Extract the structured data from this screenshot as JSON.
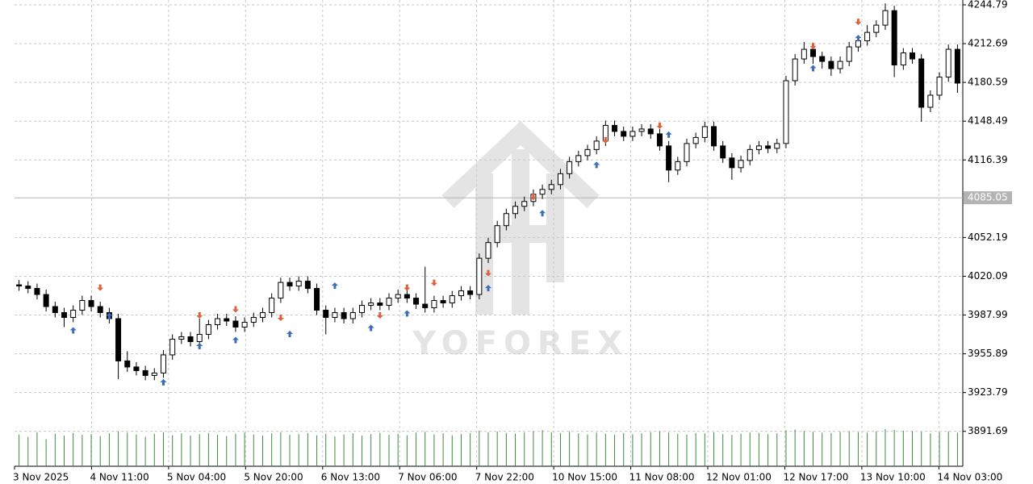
{
  "chart_data": {
    "type": "candlestick",
    "watermark": "YOFOREX",
    "ylim": [
      3862.8,
      4248.8
    ],
    "yticks": [
      4244.79,
      4212.69,
      4180.59,
      4148.49,
      4116.39,
      4052.19,
      4020.09,
      3987.99,
      3955.89,
      3923.79,
      3891.69
    ],
    "current_price": 4085.05,
    "grid": true,
    "x_labels": [
      "3 Nov 2025",
      "4 Nov 11:00",
      "5 Nov 04:00",
      "5 Nov 20:00",
      "6 Nov 13:00",
      "7 Nov 06:00",
      "7 Nov 22:00",
      "10 Nov 15:00",
      "11 Nov 08:00",
      "12 Nov 01:00",
      "12 Nov 17:00",
      "13 Nov 10:00",
      "14 Nov 03:00"
    ],
    "up_color": "#ffffff",
    "down_color": "#000000",
    "ohlc": [
      [
        4013,
        4017,
        4008,
        4012
      ],
      [
        4012,
        4016,
        4006,
        4010
      ],
      [
        4010,
        4014,
        4001,
        4005
      ],
      [
        4005,
        4009,
        3991,
        3995
      ],
      [
        3995,
        3999,
        3986,
        3990
      ],
      [
        3990,
        3994,
        3978,
        3986
      ],
      [
        3986,
        3996,
        3982,
        3992
      ],
      [
        3992,
        4004,
        3988,
        4000
      ],
      [
        4000,
        4004,
        3991,
        3995
      ],
      [
        3995,
        3999,
        3986,
        3990
      ],
      [
        3990,
        3994,
        3981,
        3985
      ],
      [
        3985,
        3989,
        3935,
        3950
      ],
      [
        3950,
        3958,
        3941,
        3945
      ],
      [
        3945,
        3949,
        3938,
        3942
      ],
      [
        3942,
        3946,
        3934,
        3938
      ],
      [
        3938,
        3944,
        3934,
        3940
      ],
      [
        3940,
        3959,
        3936,
        3955
      ],
      [
        3955,
        3972,
        3951,
        3968
      ],
      [
        3968,
        3974,
        3964,
        3970
      ],
      [
        3970,
        3974,
        3962,
        3966
      ],
      [
        3966,
        3985,
        3962,
        3972
      ],
      [
        3972,
        3984,
        3968,
        3980
      ],
      [
        3980,
        3989,
        3976,
        3985
      ],
      [
        3985,
        3989,
        3979,
        3983
      ],
      [
        3983,
        3987,
        3974,
        3978
      ],
      [
        3978,
        3986,
        3974,
        3982
      ],
      [
        3982,
        3990,
        3978,
        3986
      ],
      [
        3986,
        3994,
        3982,
        3990
      ],
      [
        3990,
        4006,
        3986,
        4002
      ],
      [
        4002,
        4019,
        3998,
        4015
      ],
      [
        4015,
        4019,
        4008,
        4012
      ],
      [
        4012,
        4020,
        4008,
        4016
      ],
      [
        4016,
        4020,
        4006,
        4010
      ],
      [
        4010,
        4014,
        3988,
        3992
      ],
      [
        3992,
        3996,
        3972,
        3986
      ],
      [
        3986,
        3994,
        3982,
        3990
      ],
      [
        3990,
        3994,
        3981,
        3985
      ],
      [
        3985,
        3994,
        3981,
        3990
      ],
      [
        3990,
        4000,
        3986,
        3996
      ],
      [
        3996,
        4002,
        3992,
        3998
      ],
      [
        3998,
        4002,
        3992,
        3996
      ],
      [
        3996,
        4006,
        3992,
        4002
      ],
      [
        4002,
        4009,
        3998,
        4005
      ],
      [
        4005,
        4009,
        3998,
        4002
      ],
      [
        4002,
        4006,
        3993,
        3997
      ],
      [
        3997,
        4028,
        3990,
        3994
      ],
      [
        3994,
        4004,
        3990,
        4000
      ],
      [
        4000,
        4004,
        3994,
        3998
      ],
      [
        3998,
        4008,
        3994,
        4004
      ],
      [
        4004,
        4012,
        4000,
        4008
      ],
      [
        4008,
        4012,
        4001,
        4005
      ],
      [
        4005,
        4039,
        4001,
        4035
      ],
      [
        4035,
        4052,
        4031,
        4048
      ],
      [
        4048,
        4066,
        4044,
        4062
      ],
      [
        4062,
        4076,
        4058,
        4072
      ],
      [
        4072,
        4082,
        4068,
        4078
      ],
      [
        4078,
        4086,
        4074,
        4082
      ],
      [
        4082,
        4092,
        4078,
        4088
      ],
      [
        4088,
        4096,
        4084,
        4092
      ],
      [
        4092,
        4100,
        4088,
        4096
      ],
      [
        4096,
        4109,
        4092,
        4105
      ],
      [
        4105,
        4119,
        4101,
        4115
      ],
      [
        4115,
        4124,
        4111,
        4120
      ],
      [
        4120,
        4129,
        4116,
        4125
      ],
      [
        4125,
        4136,
        4121,
        4132
      ],
      [
        4132,
        4149,
        4128,
        4145
      ],
      [
        4145,
        4149,
        4136,
        4140
      ],
      [
        4140,
        4144,
        4132,
        4136
      ],
      [
        4136,
        4144,
        4132,
        4140
      ],
      [
        4140,
        4146,
        4136,
        4142
      ],
      [
        4142,
        4146,
        4134,
        4138
      ],
      [
        4138,
        4142,
        4124,
        4128
      ],
      [
        4128,
        4132,
        4098,
        4108
      ],
      [
        4108,
        4119,
        4104,
        4115
      ],
      [
        4115,
        4134,
        4111,
        4130
      ],
      [
        4130,
        4139,
        4126,
        4135
      ],
      [
        4135,
        4148,
        4131,
        4144
      ],
      [
        4144,
        4148,
        4124,
        4128
      ],
      [
        4128,
        4132,
        4114,
        4118
      ],
      [
        4118,
        4122,
        4100,
        4110
      ],
      [
        4110,
        4120,
        4106,
        4116
      ],
      [
        4116,
        4129,
        4112,
        4125
      ],
      [
        4125,
        4132,
        4121,
        4128
      ],
      [
        4128,
        4132,
        4122,
        4126
      ],
      [
        4126,
        4134,
        4122,
        4130
      ],
      [
        4130,
        4186,
        4126,
        4182
      ],
      [
        4182,
        4204,
        4178,
        4200
      ],
      [
        4200,
        4214,
        4196,
        4208
      ],
      [
        4208,
        4212,
        4196,
        4202
      ],
      [
        4202,
        4206,
        4192,
        4198
      ],
      [
        4198,
        4202,
        4186,
        4192
      ],
      [
        4192,
        4202,
        4188,
        4198
      ],
      [
        4198,
        4214,
        4194,
        4210
      ],
      [
        4210,
        4219,
        4206,
        4215
      ],
      [
        4215,
        4228,
        4211,
        4222
      ],
      [
        4222,
        4232,
        4218,
        4228
      ],
      [
        4228,
        4246,
        4224,
        4240
      ],
      [
        4240,
        4244,
        4185,
        4195
      ],
      [
        4195,
        4209,
        4191,
        4205
      ],
      [
        4205,
        4209,
        4196,
        4200
      ],
      [
        4200,
        4204,
        4148,
        4160
      ],
      [
        4160,
        4174,
        4156,
        4170
      ],
      [
        4170,
        4189,
        4166,
        4185
      ],
      [
        4185,
        4212,
        4181,
        4208
      ],
      [
        4208,
        4212,
        4172,
        4180
      ]
    ],
    "volume_color": "#3c8c3c",
    "vlim": [
      0,
      1000
    ],
    "volume": [
      820,
      760,
      880,
      700,
      840,
      790,
      860,
      810,
      830,
      780,
      850,
      900,
      870,
      820,
      760,
      840,
      880,
      800,
      850,
      790,
      830,
      860,
      810,
      780,
      840,
      870,
      820,
      790,
      850,
      880,
      810,
      830,
      860,
      800,
      840,
      770,
      820,
      850,
      790,
      830,
      860,
      810,
      840,
      800,
      870,
      890,
      820,
      850,
      800,
      830,
      860,
      920,
      880,
      900,
      860,
      840,
      870,
      900,
      930,
      880,
      860,
      890,
      850,
      820,
      870,
      840,
      810,
      860,
      830,
      850,
      880,
      900,
      870,
      840,
      820,
      860,
      850,
      880,
      830,
      810,
      840,
      870,
      860,
      830,
      850,
      930,
      950,
      910,
      890,
      870,
      860,
      890,
      900,
      880,
      870,
      900,
      960,
      940,
      920,
      910,
      890,
      850,
      880,
      900,
      870
    ],
    "sell_signals": {
      "color": "#e0603a",
      "x": [
        9,
        20,
        24,
        29,
        40,
        43,
        46,
        52,
        57,
        65,
        71,
        88,
        93
      ],
      "values": [
        4008,
        3985,
        3990,
        3983,
        3985,
        4008,
        4012,
        4020,
        4083,
        4130,
        4142,
        4208,
        4228
      ]
    },
    "buy_signals": {
      "color": "#3a6fb8",
      "x": [
        6,
        10,
        16,
        20,
        24,
        30,
        35,
        39,
        43,
        52,
        58,
        64,
        72,
        88,
        93
      ],
      "values": [
        3978,
        3990,
        3935,
        3965,
        3970,
        3975,
        4015,
        3980,
        3992,
        4013,
        4075,
        4115,
        4140,
        4195,
        4220
      ]
    }
  }
}
